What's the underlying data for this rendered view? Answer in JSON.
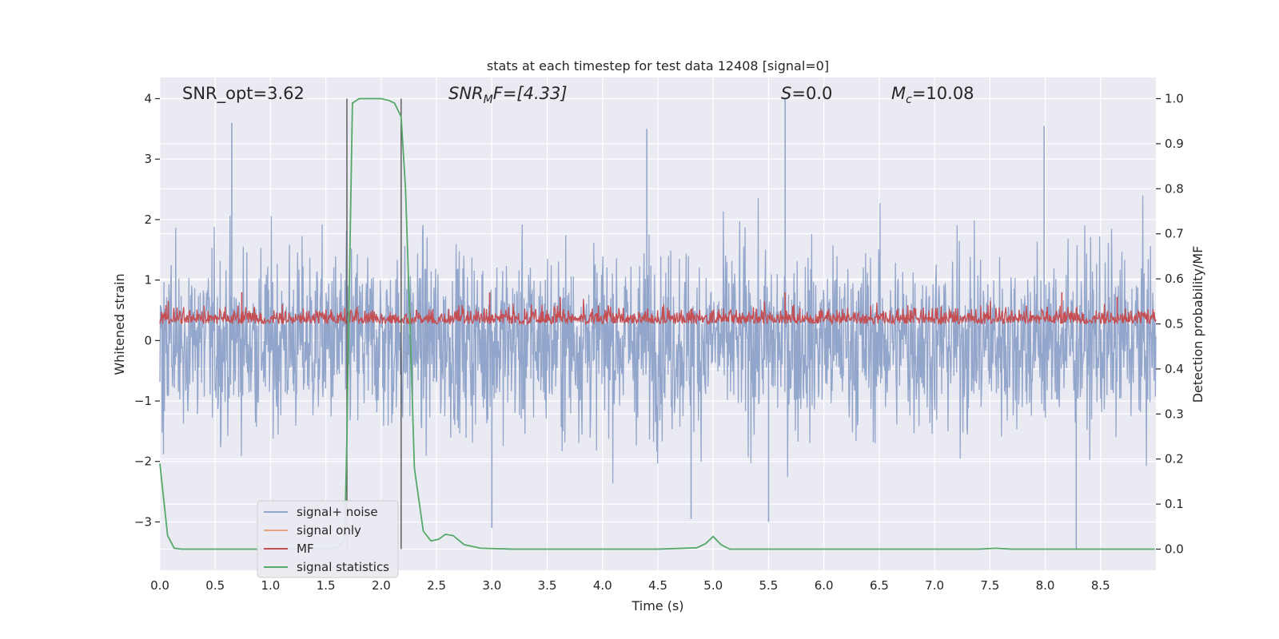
{
  "chart_data": {
    "type": "line",
    "title": "stats at each timestep for test data 12408 [signal=0]",
    "xlabel": "Time (s)",
    "ylabel": "Whitened strain",
    "ylabel_right": "Detection probability/MF",
    "xlim": [
      0.0,
      9.0
    ],
    "ylim": [
      -3.8,
      4.35
    ],
    "ylim_right": [
      -0.047,
      1.047
    ],
    "x_ticks": [
      0.0,
      0.5,
      1.0,
      1.5,
      2.0,
      2.5,
      3.0,
      3.5,
      4.0,
      4.5,
      5.0,
      5.5,
      6.0,
      6.5,
      7.0,
      7.5,
      8.0,
      8.5
    ],
    "x_tick_labels": [
      "0.0",
      "0.5",
      "1.0",
      "1.5",
      "2.0",
      "2.5",
      "3.0",
      "3.5",
      "4.0",
      "4.5",
      "5.0",
      "5.5",
      "6.0",
      "6.5",
      "7.0",
      "7.5",
      "8.0",
      "8.5"
    ],
    "y_ticks": [
      4,
      3,
      2,
      1,
      0,
      -1,
      -2,
      -3
    ],
    "y_tick_labels": [
      "4",
      "3",
      "2",
      "1",
      "0",
      "−1",
      "−2",
      "−3"
    ],
    "y_right_ticks": [
      1.0,
      0.9,
      0.8,
      0.7,
      0.6,
      0.5,
      0.4,
      0.3,
      0.2,
      0.1,
      0.0
    ],
    "y_right_tick_labels": [
      "1.0",
      "0.9",
      "0.8",
      "0.7",
      "0.6",
      "0.5",
      "0.4",
      "0.3",
      "0.2",
      "0.1",
      "0.0"
    ],
    "grid": true,
    "annotations": {
      "snr_opt": "SNR_opt=3.62",
      "snr_mf_main": "SNR",
      "snr_mf_sub": "M",
      "snr_mf_rest": "F=[4.33]",
      "s_var": "S",
      "s_rest": "=0.0",
      "mc_var": "M",
      "mc_sub": "c",
      "mc_rest": "=10.08"
    },
    "vertical_markers": [
      1.69,
      2.18
    ],
    "legend_position": "lower-left",
    "series": [
      {
        "name": "signal+ noise",
        "color": "#92a5cb",
        "style": "dense noise",
        "amplitude_typical": [
          -2.3,
          2.4
        ],
        "extremes": [
          {
            "x": 0.65,
            "y": 3.6
          },
          {
            "x": 4.4,
            "y": 3.5
          },
          {
            "x": 5.65,
            "y": 4.0
          },
          {
            "x": 7.99,
            "y": 3.55
          },
          {
            "x": 3.0,
            "y": -3.1
          },
          {
            "x": 8.28,
            "y": -3.45
          },
          {
            "x": 5.5,
            "y": -3.0
          },
          {
            "x": 4.8,
            "y": -2.95
          }
        ]
      },
      {
        "name": "signal only",
        "color": "#e8a384",
        "values": []
      },
      {
        "name": "MF",
        "color": "#c44e52",
        "axis": "right",
        "baseline": 0.5,
        "range_typical": [
          0.5,
          0.6
        ],
        "peaks": [
          {
            "x": 0.74,
            "y": 0.57
          },
          {
            "x": 2.98,
            "y": 0.57
          },
          {
            "x": 5.65,
            "y": 0.57
          },
          {
            "x": 8.15,
            "y": 0.57
          },
          {
            "x": 8.65,
            "y": 0.56
          }
        ]
      },
      {
        "name": "signal statistics",
        "color": "#55a868",
        "axis": "right",
        "x": [
          0.0,
          0.03,
          0.07,
          0.13,
          0.2,
          0.5,
          1.0,
          1.5,
          1.6,
          1.67,
          1.69,
          1.72,
          1.74,
          1.8,
          2.0,
          2.07,
          2.12,
          2.18,
          2.22,
          2.26,
          2.3,
          2.38,
          2.45,
          2.52,
          2.58,
          2.65,
          2.75,
          2.9,
          3.2,
          4.5,
          4.85,
          4.93,
          5.0,
          5.07,
          5.15,
          5.3,
          7.4,
          7.55,
          7.7,
          8.99
        ],
        "y": [
          0.19,
          0.12,
          0.03,
          0.002,
          0.0,
          0.0,
          0.0,
          0.0,
          0.003,
          0.02,
          0.25,
          0.7,
          0.99,
          1.0,
          1.0,
          0.996,
          0.99,
          0.96,
          0.8,
          0.5,
          0.18,
          0.04,
          0.018,
          0.022,
          0.033,
          0.03,
          0.01,
          0.002,
          0.0,
          0.0,
          0.003,
          0.012,
          0.028,
          0.01,
          0.0,
          0.0,
          0.0,
          0.002,
          0.0,
          0.0
        ]
      }
    ]
  }
}
